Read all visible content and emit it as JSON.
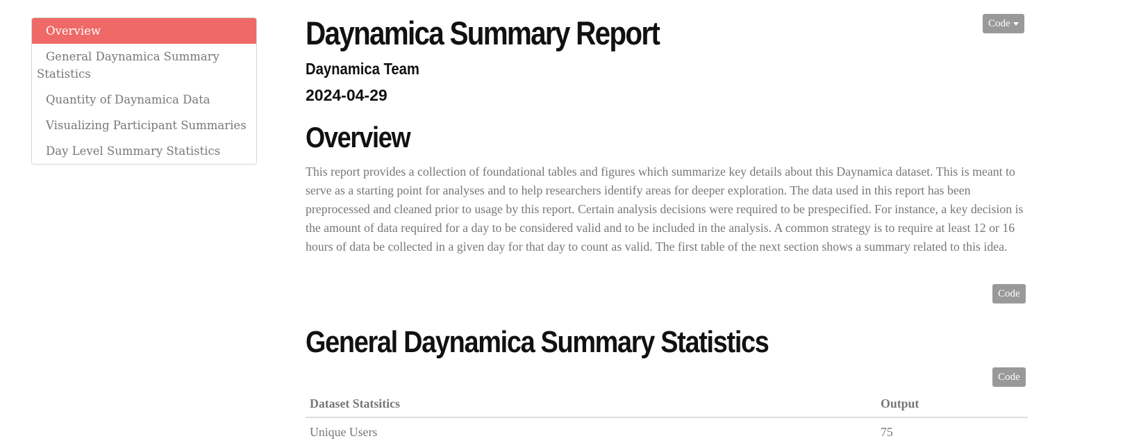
{
  "toc": {
    "items": [
      {
        "label": "Overview",
        "active": true
      },
      {
        "label": "General Daynamica Summary Statistics",
        "active": false
      },
      {
        "label": "Quantity of Daynamica Data",
        "active": false
      },
      {
        "label": "Visualizing Participant Summaries",
        "active": false
      },
      {
        "label": "Day Level Summary Statistics",
        "active": false
      }
    ]
  },
  "header": {
    "title": "Daynamica Summary Report",
    "author": "Daynamica Team",
    "date": "2024-04-29",
    "code_menu_label": "Code"
  },
  "overview": {
    "heading": "Overview",
    "paragraph": "This report provides a collection of foundational tables and figures which summarize key details about this Daynamica dataset. This is meant to serve as a starting point for analyses and to help researchers identify areas for deeper exploration. The data used in this report has been preprocessed and cleaned prior to usage by this report. Certain analysis decisions were required to be prespecified. For instance, a key decision is the amount of data required for a day to be considered valid and to be included in the analysis. A common strategy is to require at least 12 or 16 hours of data be collected in a given day for that day to count as valid. The first table of the next section shows a summary related to this idea.",
    "code_label": "Code"
  },
  "general": {
    "heading": "General Daynamica Summary Statistics",
    "code_label": "Code",
    "table": {
      "headers": [
        "Dataset Statsitics",
        "Output"
      ],
      "rows": [
        [
          "Unique Users",
          "75"
        ]
      ]
    }
  },
  "colors": {
    "accent": "#ee6967",
    "button": "#999999",
    "text_muted": "#777777"
  }
}
